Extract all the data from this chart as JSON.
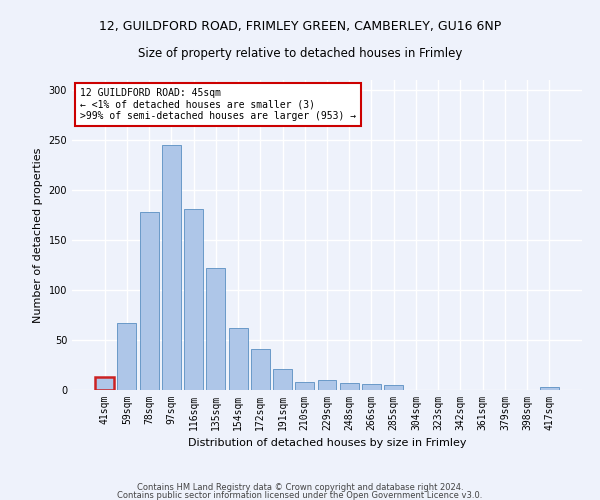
{
  "title_line1": "12, GUILDFORD ROAD, FRIMLEY GREEN, CAMBERLEY, GU16 6NP",
  "title_line2": "Size of property relative to detached houses in Frimley",
  "xlabel": "Distribution of detached houses by size in Frimley",
  "ylabel": "Number of detached properties",
  "categories": [
    "41sqm",
    "59sqm",
    "78sqm",
    "97sqm",
    "116sqm",
    "135sqm",
    "154sqm",
    "172sqm",
    "191sqm",
    "210sqm",
    "229sqm",
    "248sqm",
    "266sqm",
    "285sqm",
    "304sqm",
    "323sqm",
    "342sqm",
    "361sqm",
    "379sqm",
    "398sqm",
    "417sqm"
  ],
  "values": [
    13,
    67,
    178,
    245,
    181,
    122,
    62,
    41,
    21,
    8,
    10,
    7,
    6,
    5,
    0,
    0,
    0,
    0,
    0,
    0,
    3
  ],
  "bar_color": "#aec6e8",
  "bar_edge_color": "#5a8fc2",
  "highlight_index": 0,
  "highlight_bar_color": "#cc2222",
  "annotation_text": "12 GUILDFORD ROAD: 45sqm\n← <1% of detached houses are smaller (3)\n>99% of semi-detached houses are larger (953) →",
  "annotation_box_color": "#ffffff",
  "annotation_box_edge_color": "#cc0000",
  "ylim": [
    0,
    310
  ],
  "yticks": [
    0,
    50,
    100,
    150,
    200,
    250,
    300
  ],
  "footer_line1": "Contains HM Land Registry data © Crown copyright and database right 2024.",
  "footer_line2": "Contains public sector information licensed under the Open Government Licence v3.0.",
  "bg_color": "#eef2fb",
  "plot_bg_color": "#eef2fb",
  "grid_color": "#ffffff",
  "title_fontsize": 9,
  "subtitle_fontsize": 8.5,
  "axis_label_fontsize": 8,
  "tick_fontsize": 7,
  "footer_fontsize": 6,
  "annot_fontsize": 7
}
